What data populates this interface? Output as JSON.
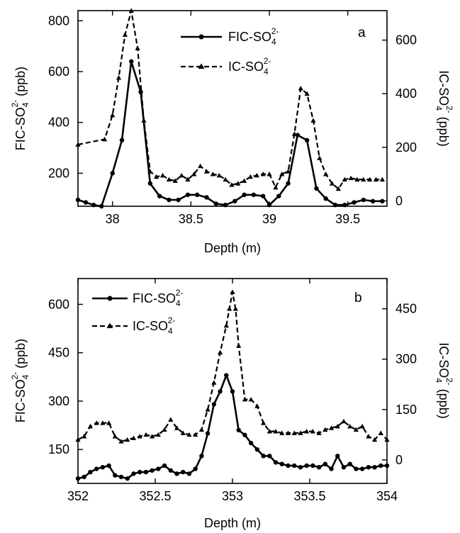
{
  "chart_data": [
    {
      "type": "line",
      "panel_label": "a",
      "xlabel": "Depth (m)",
      "ylabel_left": [
        "FIC-SO",
        "4",
        "2-",
        " (ppb)"
      ],
      "ylabel_right": [
        "IC-SO",
        "4",
        "2-",
        " (ppb)"
      ],
      "xlim": [
        37.78,
        39.75
      ],
      "ylim_left": [
        70,
        840
      ],
      "ylim_right": [
        -20,
        710
      ],
      "x_ticks": [
        38,
        38.5,
        39,
        39.5
      ],
      "x_tick_labels": [
        "38",
        "38.5",
        "39",
        "39.5"
      ],
      "y_ticks_left": [
        200,
        400,
        600,
        800
      ],
      "y_tick_labels_left": [
        "200",
        "400",
        "600",
        "800"
      ],
      "y_ticks_right": [
        0,
        200,
        400,
        600
      ],
      "y_tick_labels_right": [
        "0",
        "200",
        "400",
        "600"
      ],
      "legend_position": "top-center",
      "series": [
        {
          "name": [
            "FIC-SO",
            "4",
            "2-"
          ],
          "axis": "left",
          "style": "solid-circle",
          "x": [
            37.78,
            37.83,
            37.88,
            37.93,
            38.0,
            38.06,
            38.12,
            38.18,
            38.24,
            38.3,
            38.36,
            38.42,
            38.48,
            38.54,
            38.6,
            38.66,
            38.72,
            38.78,
            38.84,
            38.9,
            38.96,
            39.0,
            39.06,
            39.12,
            39.18,
            39.24,
            39.3,
            39.36,
            39.42,
            39.48,
            39.54,
            39.6,
            39.66,
            39.72
          ],
          "values": [
            95,
            85,
            75,
            70,
            200,
            330,
            640,
            520,
            160,
            110,
            95,
            95,
            115,
            115,
            105,
            80,
            75,
            90,
            115,
            115,
            110,
            75,
            110,
            160,
            350,
            330,
            140,
            100,
            75,
            75,
            85,
            95,
            90,
            90
          ]
        },
        {
          "name": [
            "IC-SO",
            "4",
            "2-"
          ],
          "axis": "right",
          "style": "dashed-triangle",
          "x": [
            37.78,
            37.95,
            38.0,
            38.04,
            38.08,
            38.12,
            38.16,
            38.2,
            38.24,
            38.28,
            38.32,
            38.36,
            38.4,
            38.44,
            38.48,
            38.52,
            38.56,
            38.6,
            38.64,
            38.68,
            38.72,
            38.76,
            38.8,
            38.84,
            38.88,
            38.92,
            38.96,
            39.0,
            39.04,
            39.08,
            39.12,
            39.16,
            39.2,
            39.24,
            39.28,
            39.32,
            39.36,
            39.4,
            39.44,
            39.48,
            39.52,
            39.56,
            39.6,
            39.64,
            39.68,
            39.72
          ],
          "values": [
            210,
            230,
            320,
            460,
            620,
            710,
            570,
            300,
            110,
            90,
            95,
            80,
            75,
            95,
            80,
            100,
            130,
            110,
            100,
            95,
            80,
            60,
            65,
            75,
            90,
            95,
            100,
            100,
            50,
            100,
            110,
            250,
            420,
            400,
            300,
            160,
            100,
            65,
            45,
            80,
            85,
            80,
            80,
            80,
            80,
            80
          ]
        }
      ]
    },
    {
      "type": "line",
      "panel_label": "b",
      "xlabel": "Depth (m)",
      "ylabel_left": [
        "FIC-SO",
        "4",
        "2-",
        " (ppb)"
      ],
      "ylabel_right": [
        "IC-SO",
        "4",
        "2-",
        " (ppb)"
      ],
      "xlim": [
        352,
        354
      ],
      "ylim_left": [
        45,
        680
      ],
      "ylim_right": [
        -70,
        540
      ],
      "x_ticks": [
        352,
        352.5,
        353,
        353.5,
        354
      ],
      "x_tick_labels": [
        "352",
        "352.5",
        "353",
        "353.5",
        "354"
      ],
      "y_ticks_left": [
        150,
        300,
        450,
        600
      ],
      "y_tick_labels_left": [
        "150",
        "300",
        "450",
        "600"
      ],
      "y_ticks_right": [
        0,
        150,
        300,
        450
      ],
      "y_tick_labels_right": [
        "0",
        "150",
        "300",
        "450"
      ],
      "legend_position": "top-left",
      "series": [
        {
          "name": [
            "FIC-SO",
            "4",
            "2-"
          ],
          "axis": "left",
          "style": "solid-circle",
          "x": [
            352.0,
            352.04,
            352.08,
            352.12,
            352.16,
            352.2,
            352.24,
            352.28,
            352.32,
            352.36,
            352.4,
            352.44,
            352.48,
            352.52,
            352.56,
            352.6,
            352.64,
            352.68,
            352.72,
            352.76,
            352.8,
            352.84,
            352.88,
            352.92,
            352.96,
            353.0,
            353.04,
            353.08,
            353.12,
            353.16,
            353.2,
            353.24,
            353.28,
            353.32,
            353.36,
            353.4,
            353.44,
            353.48,
            353.52,
            353.56,
            353.6,
            353.64,
            353.68,
            353.72,
            353.76,
            353.8,
            353.84,
            353.88,
            353.92,
            353.96,
            354.0
          ],
          "values": [
            60,
            65,
            80,
            90,
            95,
            100,
            70,
            65,
            60,
            75,
            80,
            80,
            85,
            90,
            100,
            85,
            75,
            80,
            75,
            90,
            130,
            200,
            290,
            330,
            380,
            330,
            210,
            195,
            170,
            150,
            130,
            130,
            110,
            105,
            100,
            100,
            95,
            100,
            100,
            95,
            105,
            90,
            130,
            95,
            105,
            90,
            90,
            95,
            95,
            100,
            100
          ]
        },
        {
          "name": [
            "IC-SO",
            "4",
            "2-"
          ],
          "axis": "right",
          "style": "dashed-triangle",
          "x": [
            352.0,
            352.04,
            352.08,
            352.12,
            352.16,
            352.2,
            352.24,
            352.28,
            352.32,
            352.36,
            352.4,
            352.44,
            352.48,
            352.52,
            352.56,
            352.6,
            352.64,
            352.68,
            352.72,
            352.76,
            352.8,
            352.84,
            352.88,
            352.92,
            352.96,
            352.98,
            353.0,
            353.02,
            353.04,
            353.08,
            353.12,
            353.16,
            353.2,
            353.24,
            353.28,
            353.32,
            353.36,
            353.4,
            353.44,
            353.48,
            353.52,
            353.56,
            353.6,
            353.64,
            353.68,
            353.72,
            353.76,
            353.8,
            353.84,
            353.88,
            353.92,
            353.96,
            354.0
          ],
          "values": [
            60,
            70,
            100,
            110,
            110,
            110,
            70,
            55,
            60,
            65,
            70,
            75,
            70,
            75,
            90,
            120,
            95,
            80,
            75,
            75,
            90,
            150,
            230,
            320,
            400,
            450,
            500,
            450,
            340,
            180,
            180,
            160,
            110,
            85,
            85,
            80,
            80,
            80,
            80,
            85,
            85,
            80,
            90,
            95,
            100,
            115,
            100,
            90,
            100,
            70,
            60,
            80,
            60
          ]
        }
      ]
    }
  ]
}
